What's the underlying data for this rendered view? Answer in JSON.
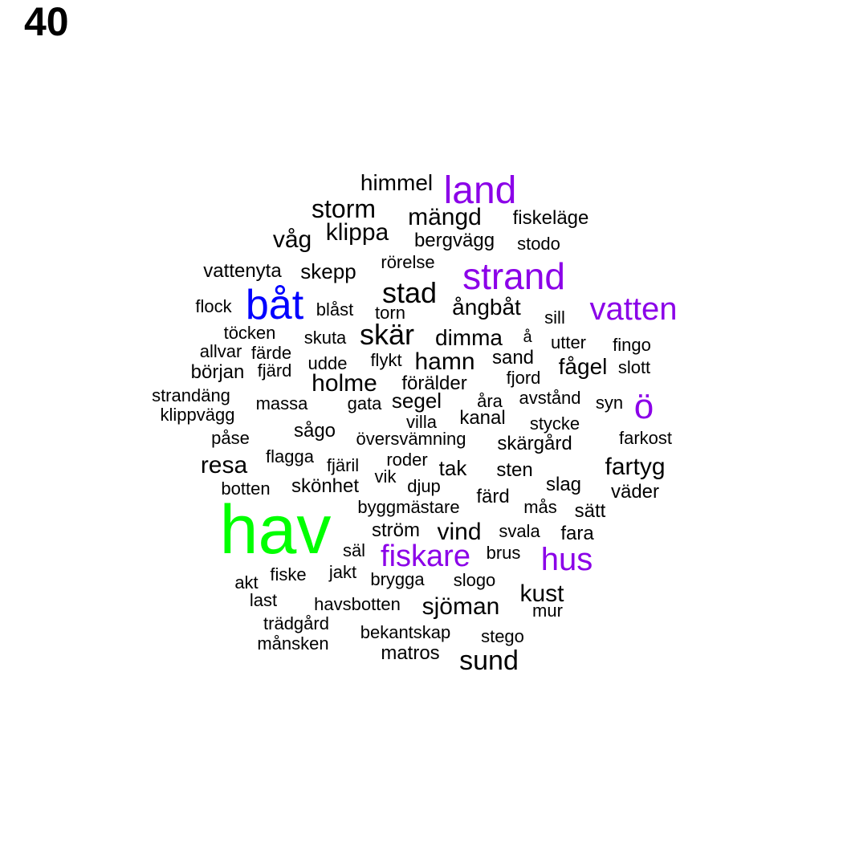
{
  "page_number": "40",
  "colors": {
    "default": "#000000",
    "emphasis": "#8B00E8",
    "highlight_blue": "#0000FF",
    "highlight_green": "#00FF00"
  },
  "word_cloud": [
    {
      "text": "hav",
      "tone": "highlight_green"
    },
    {
      "text": "båt",
      "tone": "highlight_blue"
    },
    {
      "text": "land",
      "tone": "emphasis"
    },
    {
      "text": "strand",
      "tone": "emphasis"
    },
    {
      "text": "vatten",
      "tone": "emphasis"
    },
    {
      "text": "ö",
      "tone": "emphasis"
    },
    {
      "text": "fiskare",
      "tone": "emphasis"
    },
    {
      "text": "hus",
      "tone": "emphasis"
    },
    {
      "text": "himmel",
      "tone": "default"
    },
    {
      "text": "storm",
      "tone": "default"
    },
    {
      "text": "mängd",
      "tone": "default"
    },
    {
      "text": "fiskeläge",
      "tone": "default"
    },
    {
      "text": "våg",
      "tone": "default"
    },
    {
      "text": "klippa",
      "tone": "default"
    },
    {
      "text": "bergvägg",
      "tone": "default"
    },
    {
      "text": "stodo",
      "tone": "default"
    },
    {
      "text": "rörelse",
      "tone": "default"
    },
    {
      "text": "vattenyta",
      "tone": "default"
    },
    {
      "text": "skepp",
      "tone": "default"
    },
    {
      "text": "stad",
      "tone": "default"
    },
    {
      "text": "flock",
      "tone": "default"
    },
    {
      "text": "blåst",
      "tone": "default"
    },
    {
      "text": "torn",
      "tone": "default"
    },
    {
      "text": "ångbåt",
      "tone": "default"
    },
    {
      "text": "sill",
      "tone": "default"
    },
    {
      "text": "töcken",
      "tone": "default"
    },
    {
      "text": "skuta",
      "tone": "default"
    },
    {
      "text": "skär",
      "tone": "default"
    },
    {
      "text": "dimma",
      "tone": "default"
    },
    {
      "text": "å",
      "tone": "default"
    },
    {
      "text": "utter",
      "tone": "default"
    },
    {
      "text": "fingo",
      "tone": "default"
    },
    {
      "text": "allvar",
      "tone": "default"
    },
    {
      "text": "färde",
      "tone": "default"
    },
    {
      "text": "udde",
      "tone": "default"
    },
    {
      "text": "flykt",
      "tone": "default"
    },
    {
      "text": "hamn",
      "tone": "default"
    },
    {
      "text": "sand",
      "tone": "default"
    },
    {
      "text": "fågel",
      "tone": "default"
    },
    {
      "text": "slott",
      "tone": "default"
    },
    {
      "text": "början",
      "tone": "default"
    },
    {
      "text": "fjärd",
      "tone": "default"
    },
    {
      "text": "holme",
      "tone": "default"
    },
    {
      "text": "förälder",
      "tone": "default"
    },
    {
      "text": "fjord",
      "tone": "default"
    },
    {
      "text": "strandäng",
      "tone": "default"
    },
    {
      "text": "massa",
      "tone": "default"
    },
    {
      "text": "gata",
      "tone": "default"
    },
    {
      "text": "segel",
      "tone": "default"
    },
    {
      "text": "åra",
      "tone": "default"
    },
    {
      "text": "avstånd",
      "tone": "default"
    },
    {
      "text": "syn",
      "tone": "default"
    },
    {
      "text": "klippvägg",
      "tone": "default"
    },
    {
      "text": "villa",
      "tone": "default"
    },
    {
      "text": "kanal",
      "tone": "default"
    },
    {
      "text": "stycke",
      "tone": "default"
    },
    {
      "text": "påse",
      "tone": "default"
    },
    {
      "text": "sågo",
      "tone": "default"
    },
    {
      "text": "översvämning",
      "tone": "default"
    },
    {
      "text": "skärgård",
      "tone": "default"
    },
    {
      "text": "farkost",
      "tone": "default"
    },
    {
      "text": "flagga",
      "tone": "default"
    },
    {
      "text": "roder",
      "tone": "default"
    },
    {
      "text": "resa",
      "tone": "default"
    },
    {
      "text": "fjäril",
      "tone": "default"
    },
    {
      "text": "tak",
      "tone": "default"
    },
    {
      "text": "sten",
      "tone": "default"
    },
    {
      "text": "fartyg",
      "tone": "default"
    },
    {
      "text": "vik",
      "tone": "default"
    },
    {
      "text": "botten",
      "tone": "default"
    },
    {
      "text": "skönhet",
      "tone": "default"
    },
    {
      "text": "djup",
      "tone": "default"
    },
    {
      "text": "slag",
      "tone": "default"
    },
    {
      "text": "väder",
      "tone": "default"
    },
    {
      "text": "byggmästare",
      "tone": "default"
    },
    {
      "text": "färd",
      "tone": "default"
    },
    {
      "text": "mås",
      "tone": "default"
    },
    {
      "text": "sätt",
      "tone": "default"
    },
    {
      "text": "ström",
      "tone": "default"
    },
    {
      "text": "vind",
      "tone": "default"
    },
    {
      "text": "svala",
      "tone": "default"
    },
    {
      "text": "fara",
      "tone": "default"
    },
    {
      "text": "säl",
      "tone": "default"
    },
    {
      "text": "brus",
      "tone": "default"
    },
    {
      "text": "akt",
      "tone": "default"
    },
    {
      "text": "fiske",
      "tone": "default"
    },
    {
      "text": "jakt",
      "tone": "default"
    },
    {
      "text": "brygga",
      "tone": "default"
    },
    {
      "text": "slogo",
      "tone": "default"
    },
    {
      "text": "kust",
      "tone": "default"
    },
    {
      "text": "last",
      "tone": "default"
    },
    {
      "text": "havsbotten",
      "tone": "default"
    },
    {
      "text": "sjöman",
      "tone": "default"
    },
    {
      "text": "mur",
      "tone": "default"
    },
    {
      "text": "trädgård",
      "tone": "default"
    },
    {
      "text": "bekantskap",
      "tone": "default"
    },
    {
      "text": "stego",
      "tone": "default"
    },
    {
      "text": "månsken",
      "tone": "default"
    },
    {
      "text": "matros",
      "tone": "default"
    },
    {
      "text": "sund",
      "tone": "default"
    }
  ]
}
